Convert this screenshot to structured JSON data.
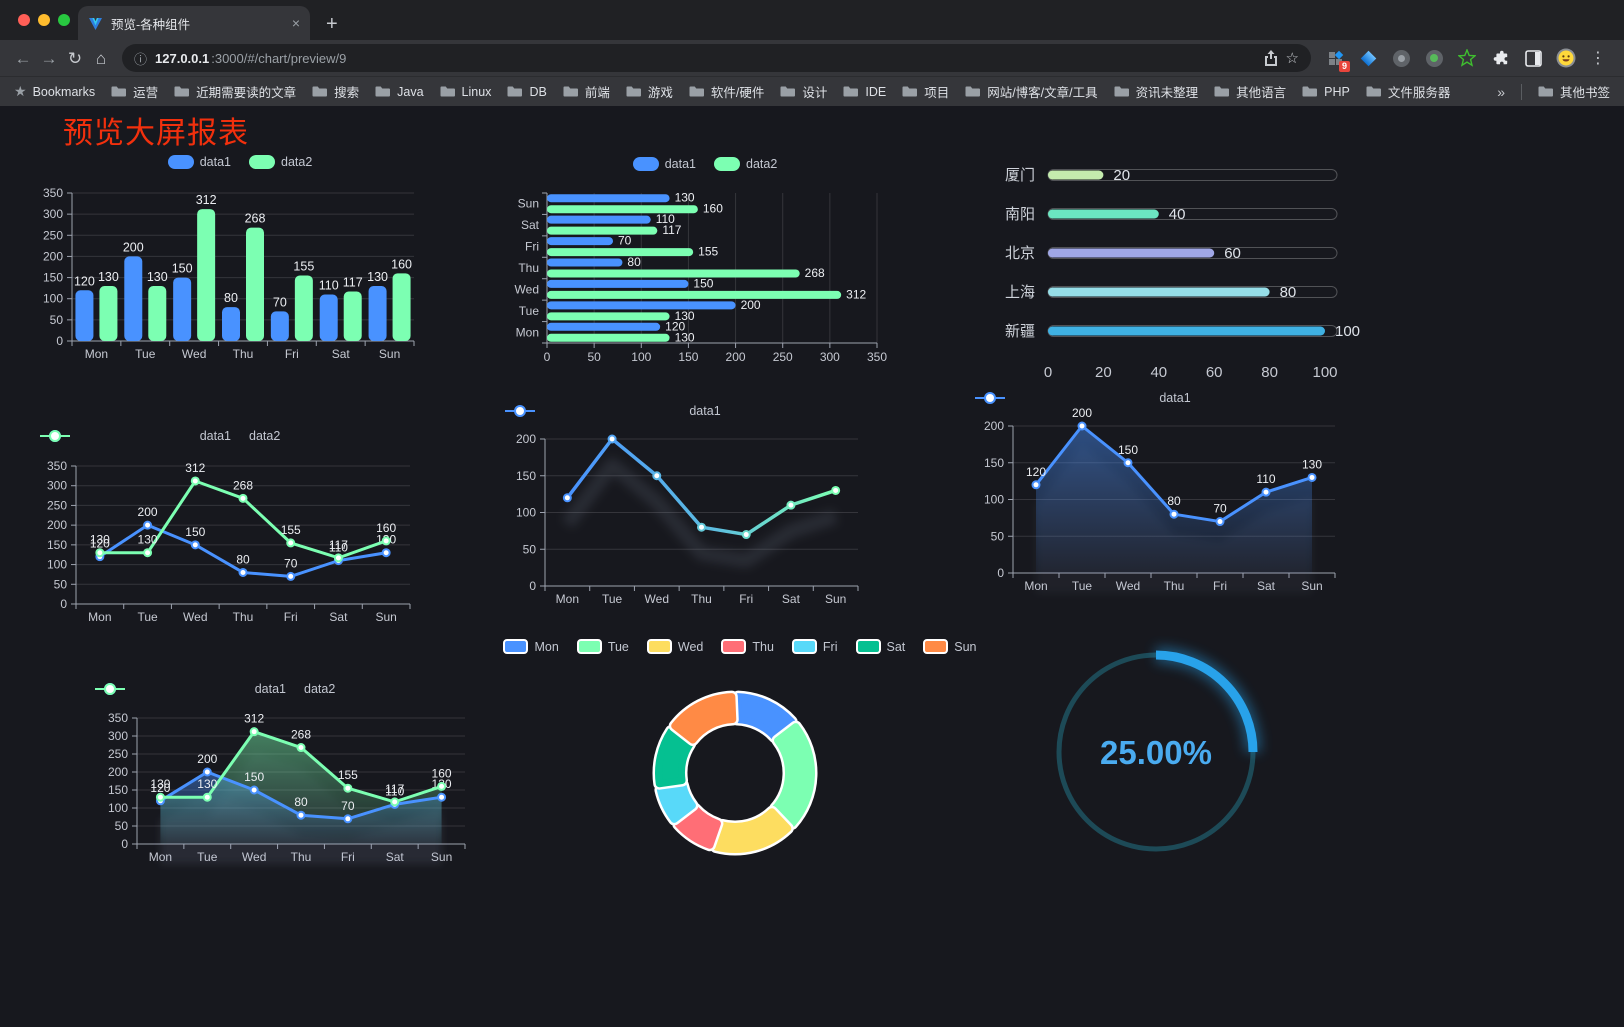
{
  "browser": {
    "tab": {
      "title": "预览-各种组件"
    },
    "url_host": "127.0.0.1",
    "url_rest": ":3000/#/chart/preview/9",
    "extension_badge": "9",
    "bookmarks_label": "Bookmarks",
    "bookmarks": [
      "运营",
      "近期需要读的文章",
      "搜索",
      "Java",
      "Linux",
      "DB",
      "前端",
      "游戏",
      "软件/硬件",
      "设计",
      "IDE",
      "项目",
      "网站/博客/文章/工具",
      "资讯未整理",
      "其他语言",
      "PHP",
      "文件服务器"
    ],
    "bookmarks_overflow": "»",
    "other_bookmarks": "其他书签"
  },
  "icons": {
    "back": "←",
    "forward": "→",
    "reload": "↻",
    "home": "⌂",
    "info": "ⓘ",
    "star": "☆",
    "close": "×",
    "new_tab": "+",
    "menu": "⋮",
    "overflow": "»",
    "bookmark_star": "★"
  },
  "page": {
    "title": "预览大屏报表",
    "title_color": "#f2300d"
  },
  "chart_data": [
    {
      "id": "grouped-bar",
      "type": "bar",
      "categories": [
        "Mon",
        "Tue",
        "Wed",
        "Thu",
        "Fri",
        "Sat",
        "Sun"
      ],
      "series": [
        {
          "name": "data1",
          "color": "#4992ff",
          "values": [
            120,
            200,
            150,
            80,
            70,
            110,
            130
          ]
        },
        {
          "name": "data2",
          "color": "#7cffb2",
          "values": [
            130,
            130,
            312,
            268,
            155,
            117,
            160
          ]
        }
      ],
      "ylim": [
        0,
        350
      ],
      "ytick_step": 50,
      "grid": true,
      "legend_position": "top"
    },
    {
      "id": "horizontal-bar",
      "type": "bar-horizontal",
      "categories": [
        "Mon",
        "Tue",
        "Wed",
        "Thu",
        "Fri",
        "Sat",
        "Sun"
      ],
      "display_order": "Mon-at-bottom",
      "series": [
        {
          "name": "data1",
          "color": "#4992ff",
          "values": [
            120,
            200,
            150,
            80,
            70,
            110,
            130
          ]
        },
        {
          "name": "data2",
          "color": "#7cffb2",
          "values": [
            130,
            130,
            312,
            268,
            155,
            117,
            160
          ]
        }
      ],
      "xlim": [
        0,
        350
      ],
      "xtick_step": 50,
      "grid": true,
      "legend_position": "top"
    },
    {
      "id": "city-progress",
      "type": "progress",
      "items": [
        {
          "label": "厦门",
          "value": 20,
          "color": "#c4ebad"
        },
        {
          "label": "南阳",
          "value": 40,
          "color": "#6be6c1"
        },
        {
          "label": "北京",
          "value": 60,
          "color": "#a0a7e6"
        },
        {
          "label": "上海",
          "value": 80,
          "color": "#96dee8"
        },
        {
          "label": "新疆",
          "value": 100,
          "color": "#3fb1e3"
        }
      ],
      "xlim": [
        0,
        100
      ],
      "xticks": [
        0,
        20,
        40,
        60,
        80,
        100
      ]
    },
    {
      "id": "dual-line",
      "type": "line",
      "categories": [
        "Mon",
        "Tue",
        "Wed",
        "Thu",
        "Fri",
        "Sat",
        "Sun"
      ],
      "series": [
        {
          "name": "data1",
          "color": "#4992ff",
          "values": [
            120,
            200,
            150,
            80,
            70,
            110,
            130
          ]
        },
        {
          "name": "data2",
          "color": "#7cffb2",
          "values": [
            130,
            130,
            312,
            268,
            155,
            117,
            160
          ]
        }
      ],
      "ylim": [
        0,
        350
      ],
      "ytick_step": 50,
      "show_labels": true,
      "legend_position": "top"
    },
    {
      "id": "gradient-line",
      "type": "line-gradient",
      "categories": [
        "Mon",
        "Tue",
        "Wed",
        "Thu",
        "Fri",
        "Sat",
        "Sun"
      ],
      "series": [
        {
          "name": "data1",
          "gradient": [
            "#4992ff",
            "#7cffb2"
          ],
          "values": [
            120,
            200,
            150,
            80,
            70,
            110,
            130
          ]
        }
      ],
      "ylim": [
        0,
        200
      ],
      "ytick_step": 50,
      "show_labels": false,
      "line_shadow": true,
      "legend_position": "top"
    },
    {
      "id": "single-area",
      "type": "area",
      "categories": [
        "Mon",
        "Tue",
        "Wed",
        "Thu",
        "Fri",
        "Sat",
        "Sun"
      ],
      "series": [
        {
          "name": "data1",
          "color": "#4992ff",
          "values": [
            120,
            200,
            150,
            80,
            70,
            110,
            130
          ]
        }
      ],
      "ylim": [
        0,
        200
      ],
      "ytick_step": 50,
      "show_labels": true,
      "legend_position": "top"
    },
    {
      "id": "dual-area",
      "type": "area",
      "categories": [
        "Mon",
        "Tue",
        "Wed",
        "Thu",
        "Fri",
        "Sat",
        "Sun"
      ],
      "series": [
        {
          "name": "data1",
          "color": "#4992ff",
          "values": [
            120,
            200,
            150,
            80,
            70,
            110,
            130
          ]
        },
        {
          "name": "data2",
          "color": "#7cffb2",
          "values": [
            130,
            130,
            312,
            268,
            155,
            117,
            160
          ]
        }
      ],
      "ylim": [
        0,
        350
      ],
      "ytick_step": 50,
      "show_labels": true,
      "legend_position": "top"
    },
    {
      "id": "week-donut",
      "type": "pie",
      "shape": "donut-rounded",
      "items": [
        {
          "name": "Mon",
          "value": 120,
          "color": "#4992ff"
        },
        {
          "name": "Tue",
          "value": 200,
          "color": "#7cffb2"
        },
        {
          "name": "Wed",
          "value": 150,
          "color": "#fddd60"
        },
        {
          "name": "Thu",
          "value": 80,
          "color": "#ff6e76"
        },
        {
          "name": "Fri",
          "value": 70,
          "color": "#58d9f9"
        },
        {
          "name": "Sat",
          "value": 110,
          "color": "#05c091"
        },
        {
          "name": "Sun",
          "value": 130,
          "color": "#ff8a45"
        }
      ],
      "legend_position": "top"
    },
    {
      "id": "percent-gauge",
      "type": "gauge",
      "label": "25.00%",
      "value": 25,
      "max": 100,
      "color": "#28a2ea",
      "track_color": "#1d4a57",
      "text_color": "#4aabf0"
    }
  ]
}
